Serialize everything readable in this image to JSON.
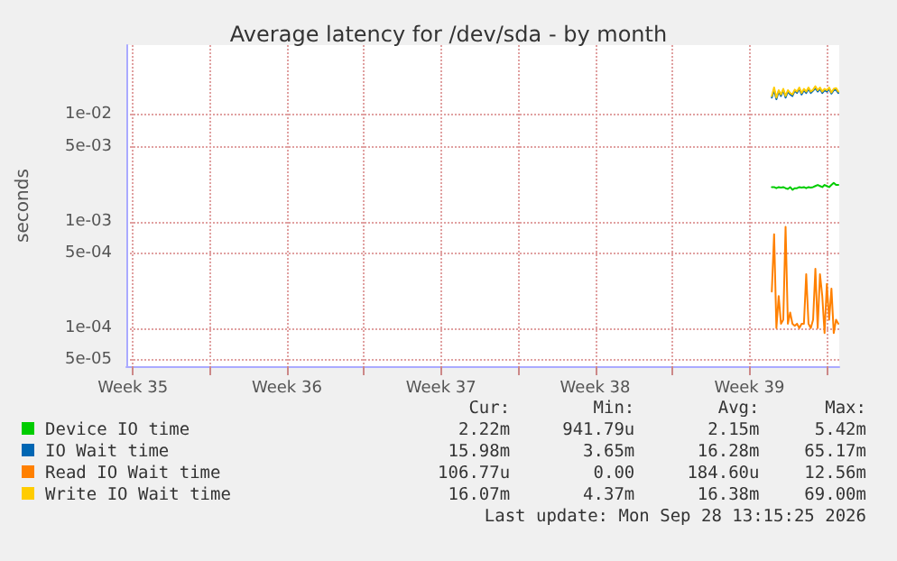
{
  "chart_data": {
    "type": "line",
    "title": "Average latency for /dev/sda - by month",
    "ylabel": "seconds",
    "x": [
      "2026-09-25T12:30",
      "2026-09-25T15:00",
      "2026-09-25T17:30",
      "2026-09-25T20:00",
      "2026-09-25T22:30",
      "2026-09-26T01:00",
      "2026-09-26T03:30",
      "2026-09-26T06:00",
      "2026-09-26T08:30",
      "2026-09-26T11:00",
      "2026-09-26T13:30",
      "2026-09-26T16:00",
      "2026-09-26T18:30",
      "2026-09-26T21:00",
      "2026-09-26T23:30",
      "2026-09-27T02:00",
      "2026-09-27T04:30",
      "2026-09-27T07:00",
      "2026-09-27T09:30",
      "2026-09-27T12:00",
      "2026-09-27T14:30",
      "2026-09-27T17:00",
      "2026-09-27T19:30",
      "2026-09-27T22:00",
      "2026-09-28T00:30",
      "2026-09-28T03:00",
      "2026-09-28T05:30",
      "2026-09-28T08:00",
      "2026-09-28T10:30",
      "2026-09-28T13:00"
    ],
    "series": [
      {
        "name": "Device IO time",
        "color": "#00cc00",
        "values": [
          0.0021,
          0.0021,
          0.00205,
          0.0021,
          0.00208,
          0.0021,
          0.00205,
          0.00202,
          0.0021,
          0.00198,
          0.00205,
          0.00205,
          0.0021,
          0.00208,
          0.0021,
          0.00205,
          0.0021,
          0.00208,
          0.0021,
          0.00215,
          0.0022,
          0.00215,
          0.0021,
          0.0022,
          0.00215,
          0.0021,
          0.0022,
          0.0023,
          0.0022,
          0.0022
        ]
      },
      {
        "name": "IO Wait time",
        "color": "#0066b3",
        "values": [
          0.0145,
          0.017,
          0.014,
          0.0165,
          0.015,
          0.017,
          0.0145,
          0.0165,
          0.0155,
          0.015,
          0.0168,
          0.016,
          0.0175,
          0.0155,
          0.017,
          0.016,
          0.0175,
          0.016,
          0.0168,
          0.0178,
          0.0165,
          0.0175,
          0.016,
          0.017,
          0.0165,
          0.0175,
          0.0158,
          0.017,
          0.0172,
          0.016
        ]
      },
      {
        "name": "Read IO Wait time",
        "color": "#ff8000",
        "values": [
          0.00022,
          0.00076,
          0.0001,
          0.0002,
          0.00011,
          0.00012,
          0.00089,
          0.00011,
          0.00014,
          0.00011,
          0.000105,
          0.00011,
          0.0001,
          0.00011,
          0.00011,
          0.00032,
          0.00011,
          0.0001,
          0.00012,
          0.00036,
          0.0001,
          0.00032,
          0.0002,
          9e-05,
          0.00026,
          0.00012,
          0.000235,
          9e-05,
          0.00012,
          0.00011
        ]
      },
      {
        "name": "Write IO Wait time",
        "color": "#ffcc00",
        "values": [
          0.015,
          0.018,
          0.0145,
          0.017,
          0.0155,
          0.0175,
          0.015,
          0.017,
          0.016,
          0.0155,
          0.0172,
          0.0165,
          0.018,
          0.016,
          0.0175,
          0.0165,
          0.018,
          0.0165,
          0.0172,
          0.0185,
          0.017,
          0.018,
          0.0165,
          0.0175,
          0.017,
          0.018,
          0.0162,
          0.0175,
          0.0178,
          0.0165
        ]
      }
    ],
    "xlim": [
      "2026-08-27T05:00",
      "2026-09-28T14:00"
    ],
    "xticks": [
      {
        "value": "2026-08-27T12:00",
        "label": "Week 35"
      },
      {
        "value": "2026-08-31",
        "label": null
      },
      {
        "value": "2026-09-03T12:00",
        "label": "Week 36"
      },
      {
        "value": "2026-09-07",
        "label": null
      },
      {
        "value": "2026-09-10T12:00",
        "label": "Week 37"
      },
      {
        "value": "2026-09-14",
        "label": null
      },
      {
        "value": "2026-09-17T12:00",
        "label": "Week 38"
      },
      {
        "value": "2026-09-21",
        "label": null
      },
      {
        "value": "2026-09-24T12:00",
        "label": "Week 39"
      },
      {
        "value": "2026-09-28",
        "label": null
      }
    ],
    "ylim": [
      4.4e-05,
      0.045
    ],
    "log": true,
    "yticks": [
      {
        "value": 5e-05,
        "label": "5e-05"
      },
      {
        "value": 0.0001,
        "label": "1e-04"
      },
      {
        "value": 0.0005,
        "label": "5e-04"
      },
      {
        "value": 0.001,
        "label": "1e-03"
      },
      {
        "value": 0.005,
        "label": "5e-03"
      },
      {
        "value": 0.01,
        "label": "1e-02"
      }
    ],
    "grid": true,
    "legend": "bottom",
    "marker": "none",
    "line_style": "solid",
    "annotations": [
      "Cur:",
      "Min:",
      "Avg:",
      "Max:",
      "2.22m",
      "941.79u",
      "2.15m",
      "5.42m",
      "15.98m",
      "3.65m",
      "16.28m",
      "65.17m",
      "106.77u",
      "0.00",
      "184.60u",
      "12.56m",
      "16.07m",
      "4.37m",
      "16.38m",
      "69.00m",
      "Last update: Mon Sep 28 13:15:25 2026"
    ]
  }
}
